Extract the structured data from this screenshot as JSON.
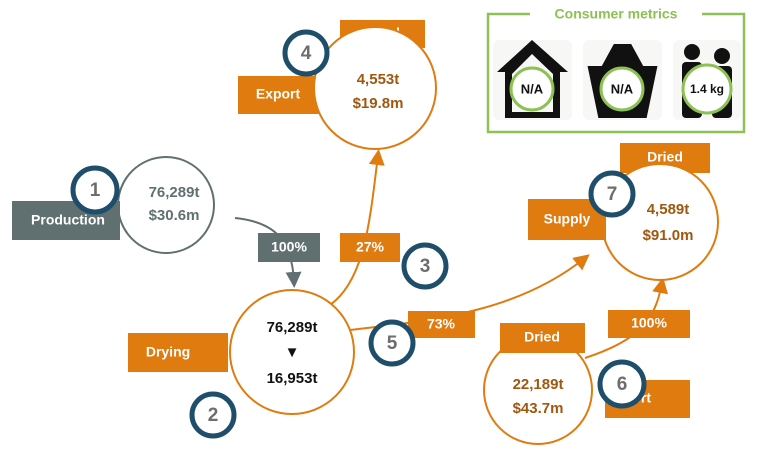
{
  "consumer_metrics": {
    "title": "Consumer metrics",
    "items": [
      "N/A",
      "N/A",
      "1.4 kg"
    ]
  },
  "nodes": [
    {
      "number": "1",
      "label": "Production",
      "lines": [
        "76,289t",
        "$30.6m"
      ]
    },
    {
      "number": "2",
      "label": "Drying",
      "lines": [
        "76,289t",
        "▼",
        "16,953t"
      ]
    },
    {
      "number": "3"
    },
    {
      "number": "4",
      "tag": "Dried",
      "label": "Export",
      "lines": [
        "4,553t",
        "$19.8m"
      ]
    },
    {
      "number": "5"
    },
    {
      "number": "6",
      "tag": "Dried",
      "label": "Export",
      "lines": [
        "22,189t",
        "$43.7m"
      ]
    },
    {
      "number": "7",
      "tag": "Dried",
      "label": "Supply",
      "lines": [
        "4,589t",
        "$91.0m"
      ]
    }
  ],
  "flows": [
    "100%",
    "27%",
    "73%",
    "100%"
  ]
}
